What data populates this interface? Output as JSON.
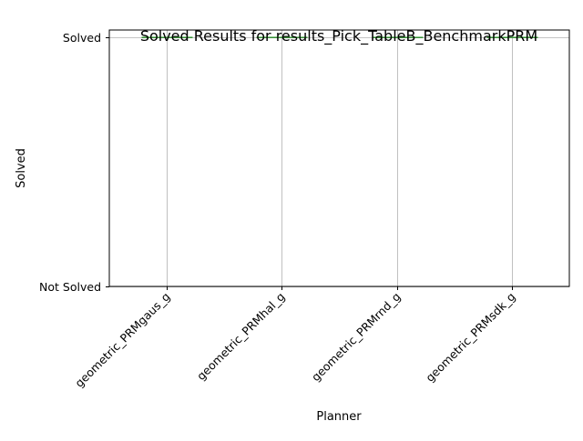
{
  "chart_data": {
    "type": "box",
    "title": "Solved Results for results_Pick_TableB_BenchmarkPRM",
    "xlabel": "Planner",
    "ylabel": "Solved",
    "categories": [
      "geometric_PRMgaus_g",
      "geometric_PRMhal_g",
      "geometric_PRMrnd_g",
      "geometric_PRMsdk_g"
    ],
    "y_ticks": [
      {
        "value": 0,
        "label": "Not Solved"
      },
      {
        "value": 1,
        "label": "Solved"
      }
    ],
    "values": [
      1,
      1,
      1,
      1
    ],
    "ylim": [
      0,
      1.03
    ],
    "grid": true,
    "median_color": "#2ca02c"
  }
}
